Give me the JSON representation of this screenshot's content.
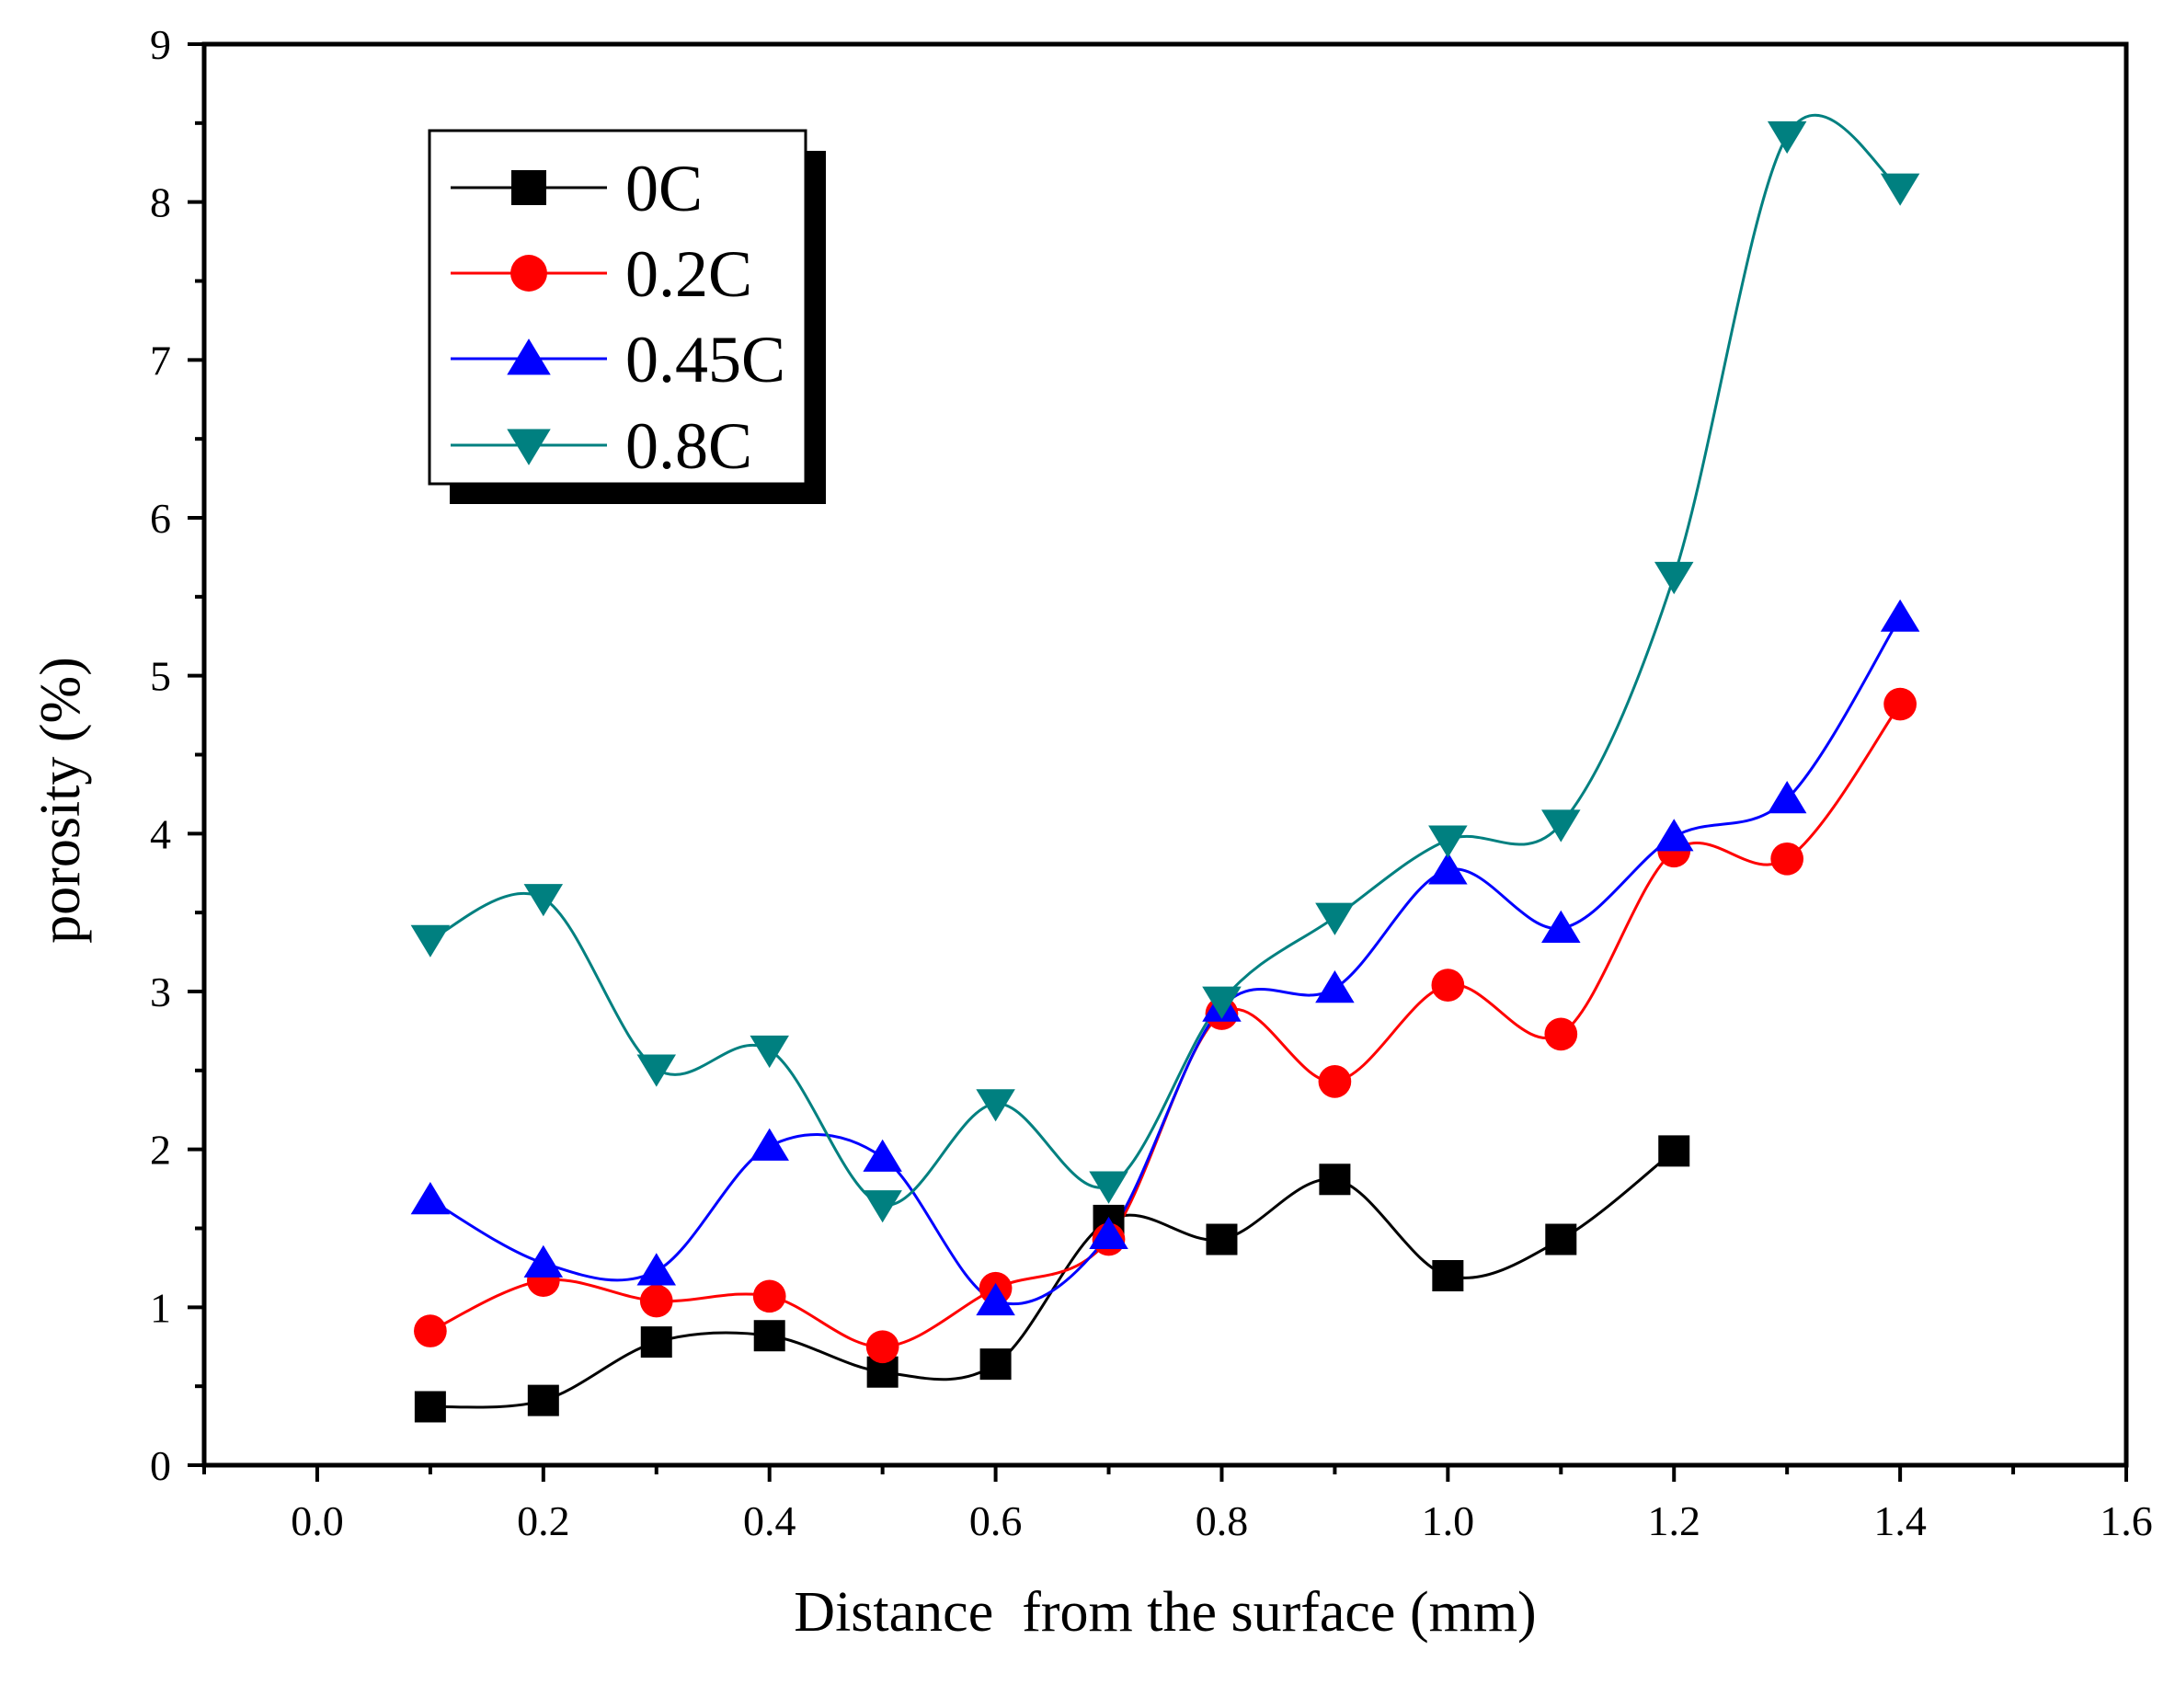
{
  "chart_data": {
    "type": "line",
    "title": "",
    "xlabel": "Distance  from the surface (mm)",
    "ylabel": "porosity (%)",
    "xlim": [
      -0.1,
      1.6
    ],
    "ylim": [
      0,
      9
    ],
    "x_ticks": [
      "0.0",
      "0.2",
      "0.4",
      "0.6",
      "0.8",
      "1.0",
      "1.2",
      "1.4",
      "1.6"
    ],
    "y_ticks": [
      "0",
      "1",
      "2",
      "3",
      "4",
      "5",
      "6",
      "7",
      "8",
      "9"
    ],
    "grid": false,
    "legend_position": "top-left",
    "smooth": true,
    "series": [
      {
        "name": "0C",
        "color": "#000000",
        "marker": "square",
        "x": [
          0.1,
          0.2,
          0.3,
          0.4,
          0.5,
          0.6,
          0.7,
          0.8,
          0.9,
          1.0,
          1.1,
          1.2
        ],
        "y": [
          0.37,
          0.41,
          0.78,
          0.82,
          0.59,
          0.64,
          1.55,
          1.43,
          1.81,
          1.2,
          1.43,
          1.99
        ]
      },
      {
        "name": "0.2C",
        "color": "#ff0000",
        "marker": "circle",
        "x": [
          0.1,
          0.2,
          0.3,
          0.4,
          0.5,
          0.6,
          0.7,
          0.8,
          0.9,
          1.0,
          1.1,
          1.2,
          1.3,
          1.4
        ],
        "y": [
          0.85,
          1.17,
          1.04,
          1.07,
          0.75,
          1.12,
          1.43,
          2.86,
          2.43,
          3.04,
          2.73,
          3.89,
          3.84,
          4.82
        ]
      },
      {
        "name": "0.45C",
        "color": "#0000ff",
        "marker": "triangle-up",
        "x": [
          0.1,
          0.2,
          0.3,
          0.4,
          0.5,
          0.6,
          0.7,
          0.8,
          0.9,
          1.0,
          1.1,
          1.2,
          1.3,
          1.4
        ],
        "y": [
          1.68,
          1.28,
          1.23,
          2.02,
          1.95,
          1.04,
          1.46,
          2.9,
          3.02,
          3.77,
          3.4,
          3.98,
          4.22,
          5.37
        ]
      },
      {
        "name": "0.8C",
        "color": "#008080",
        "marker": "triangle-down",
        "x": [
          0.1,
          0.2,
          0.3,
          0.4,
          0.5,
          0.6,
          0.7,
          0.8,
          0.9,
          1.0,
          1.1,
          1.2,
          1.3,
          1.4
        ],
        "y": [
          3.33,
          3.59,
          2.51,
          2.63,
          1.65,
          2.29,
          1.77,
          2.94,
          3.47,
          3.96,
          4.06,
          5.63,
          8.42,
          8.09
        ]
      }
    ]
  }
}
